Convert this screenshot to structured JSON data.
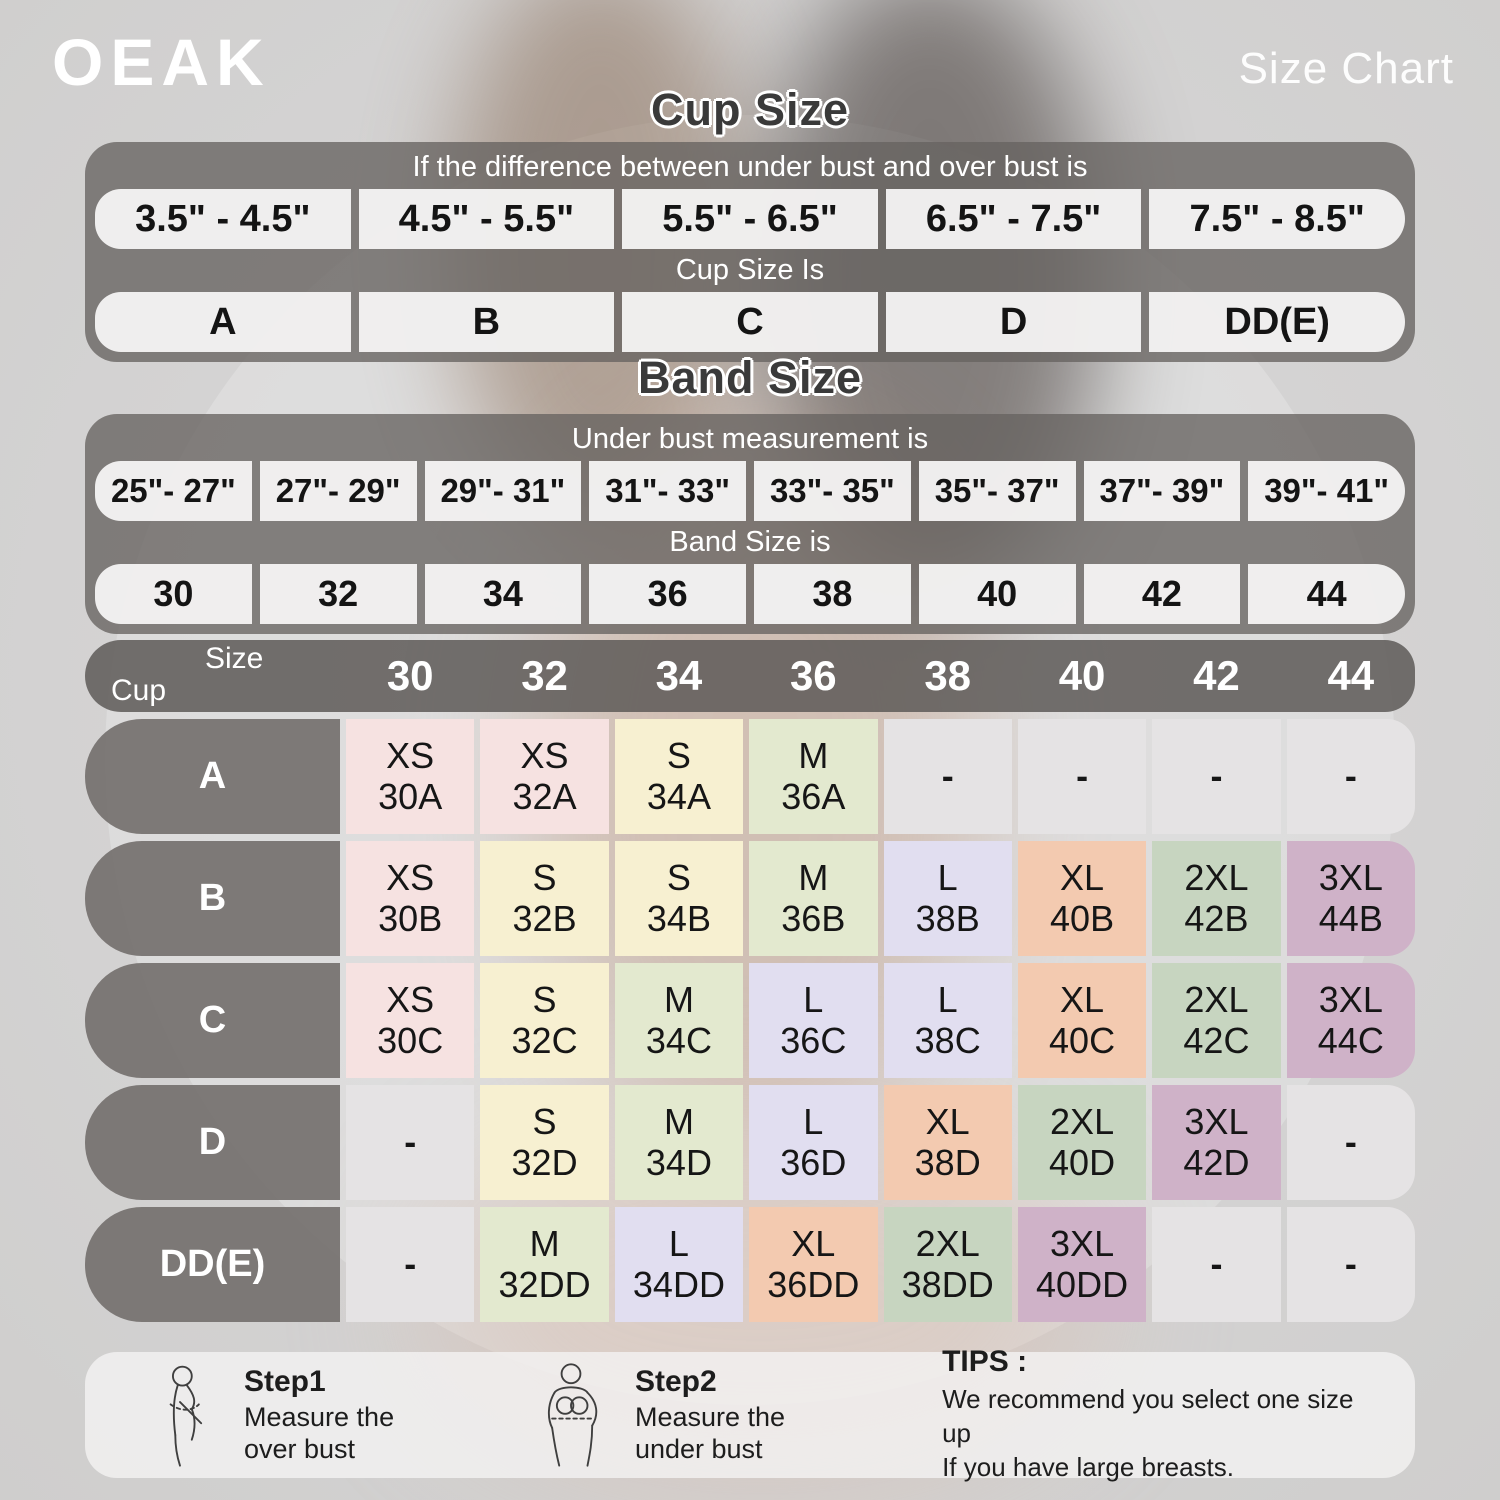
{
  "brand": "OEAK",
  "page_title": "Size Chart",
  "colors": {
    "pink": "#f6e2e1",
    "cream": "#f7f0d1",
    "sage": "#e3e9cf",
    "lavender": "#e1def0",
    "peach": "#f3cab0",
    "green": "#c7d5c0",
    "mauve": "#cfb2c8",
    "gray": "#e5e3e4",
    "panel_gray": "rgba(103,99,96,0.78)",
    "title_gray": "#3a3a3a",
    "text_white": "#ffffff"
  },
  "cup_section": {
    "title": "Cup Size",
    "header": "If the  difference between under bust and over bust is",
    "ranges": [
      "3.5\" -  4.5\"",
      "4.5\" -  5.5\"",
      "5.5\" -  6.5\"",
      "6.5\" -  7.5\"",
      "7.5\" -  8.5\""
    ],
    "subheader": "Cup Size Is",
    "values": [
      "A",
      "B",
      "C",
      "D",
      "DD(E)"
    ]
  },
  "band_section": {
    "title": "Band Size",
    "header": "Under bust measurement is",
    "ranges": [
      "25\"- 27\"",
      "27\"- 29\"",
      "29\"- 31\"",
      "31\"- 33\"",
      "33\"- 35\"",
      "35\"- 37\"",
      "37\"- 39\"",
      "39\"- 41\""
    ],
    "subheader": "Band Size is",
    "values": [
      "30",
      "32",
      "34",
      "36",
      "38",
      "40",
      "42",
      "44"
    ]
  },
  "matrix": {
    "corner_top": "Size",
    "corner_bottom": "Cup",
    "columns": [
      "30",
      "32",
      "34",
      "36",
      "38",
      "40",
      "42",
      "44"
    ],
    "rows": [
      {
        "label": "A",
        "cells": [
          {
            "size": "XS",
            "code": "30A",
            "color": "pink"
          },
          {
            "size": "XS",
            "code": "32A",
            "color": "pink"
          },
          {
            "size": "S",
            "code": "34A",
            "color": "cream"
          },
          {
            "size": "M",
            "code": "36A",
            "color": "sage"
          },
          {
            "size": "-",
            "code": "",
            "color": "gray"
          },
          {
            "size": "-",
            "code": "",
            "color": "gray"
          },
          {
            "size": "-",
            "code": "",
            "color": "gray"
          },
          {
            "size": "-",
            "code": "",
            "color": "gray"
          }
        ]
      },
      {
        "label": "B",
        "cells": [
          {
            "size": "XS",
            "code": "30B",
            "color": "pink"
          },
          {
            "size": "S",
            "code": "32B",
            "color": "cream"
          },
          {
            "size": "S",
            "code": "34B",
            "color": "cream"
          },
          {
            "size": "M",
            "code": "36B",
            "color": "sage"
          },
          {
            "size": "L",
            "code": "38B",
            "color": "lavender"
          },
          {
            "size": "XL",
            "code": "40B",
            "color": "peach"
          },
          {
            "size": "2XL",
            "code": "42B",
            "color": "green"
          },
          {
            "size": "3XL",
            "code": "44B",
            "color": "mauve"
          }
        ]
      },
      {
        "label": "C",
        "cells": [
          {
            "size": "XS",
            "code": "30C",
            "color": "pink"
          },
          {
            "size": "S",
            "code": "32C",
            "color": "cream"
          },
          {
            "size": "M",
            "code": "34C",
            "color": "sage"
          },
          {
            "size": "L",
            "code": "36C",
            "color": "lavender"
          },
          {
            "size": "L",
            "code": "38C",
            "color": "lavender"
          },
          {
            "size": "XL",
            "code": "40C",
            "color": "peach"
          },
          {
            "size": "2XL",
            "code": "42C",
            "color": "green"
          },
          {
            "size": "3XL",
            "code": "44C",
            "color": "mauve"
          }
        ]
      },
      {
        "label": "D",
        "cells": [
          {
            "size": "-",
            "code": "",
            "color": "gray"
          },
          {
            "size": "S",
            "code": "32D",
            "color": "cream"
          },
          {
            "size": "M",
            "code": "34D",
            "color": "sage"
          },
          {
            "size": "L",
            "code": "36D",
            "color": "lavender"
          },
          {
            "size": "XL",
            "code": "38D",
            "color": "peach"
          },
          {
            "size": "2XL",
            "code": "40D",
            "color": "green"
          },
          {
            "size": "3XL",
            "code": "42D",
            "color": "mauve"
          },
          {
            "size": "-",
            "code": "",
            "color": "gray"
          }
        ]
      },
      {
        "label": "DD(E)",
        "cells": [
          {
            "size": "-",
            "code": "",
            "color": "gray"
          },
          {
            "size": "M",
            "code": "32DD",
            "color": "sage"
          },
          {
            "size": "L",
            "code": "34DD",
            "color": "lavender"
          },
          {
            "size": "XL",
            "code": "36DD",
            "color": "peach"
          },
          {
            "size": "2XL",
            "code": "38DD",
            "color": "green"
          },
          {
            "size": "3XL",
            "code": "40DD",
            "color": "mauve"
          },
          {
            "size": "-",
            "code": "",
            "color": "gray"
          },
          {
            "size": "-",
            "code": "",
            "color": "gray"
          }
        ]
      }
    ]
  },
  "footer": {
    "steps": [
      {
        "title": "Step1",
        "line1": "Measure the",
        "line2": "over bust"
      },
      {
        "title": "Step2",
        "line1": "Measure the",
        "line2": "under bust"
      }
    ],
    "tips_title": "TIPS :",
    "tips_line1": "We recommend you select one size up",
    "tips_line2": "If you have large breasts."
  },
  "chart_data": [
    {
      "type": "table",
      "title": "Cup Size",
      "note": "If the  difference between under bust and over bust is",
      "columns": [
        "3.5\" - 4.5\"",
        "4.5\" - 5.5\"",
        "5.5\" - 6.5\"",
        "6.5\" - 7.5\"",
        "7.5\" - 8.5\""
      ],
      "row_label": "Cup Size Is",
      "values": [
        "A",
        "B",
        "C",
        "D",
        "DD(E)"
      ]
    },
    {
      "type": "table",
      "title": "Band Size",
      "note": "Under bust measurement is",
      "columns": [
        "25\"- 27\"",
        "27\"- 29\"",
        "29\"- 31\"",
        "31\"- 33\"",
        "33\"- 35\"",
        "35\"- 37\"",
        "37\"- 39\"",
        "39\"- 41\""
      ],
      "row_label": "Band Size is",
      "values": [
        "30",
        "32",
        "34",
        "36",
        "38",
        "40",
        "42",
        "44"
      ]
    },
    {
      "type": "table",
      "title": "Cup x Band size matrix",
      "columns": [
        "30",
        "32",
        "34",
        "36",
        "38",
        "40",
        "42",
        "44"
      ],
      "rows": [
        {
          "label": "A",
          "values": [
            "XS 30A",
            "XS 32A",
            "S 34A",
            "M 36A",
            "-",
            "-",
            "-",
            "-"
          ]
        },
        {
          "label": "B",
          "values": [
            "XS 30B",
            "S 32B",
            "S 34B",
            "M 36B",
            "L 38B",
            "XL 40B",
            "2XL 42B",
            "3XL 44B"
          ]
        },
        {
          "label": "C",
          "values": [
            "XS 30C",
            "S 32C",
            "M 34C",
            "L 36C",
            "L 38C",
            "XL 40C",
            "2XL 42C",
            "3XL 44C"
          ]
        },
        {
          "label": "D",
          "values": [
            "-",
            "S 32D",
            "M 34D",
            "L 36D",
            "XL 38D",
            "2XL 40D",
            "3XL 42D",
            "-"
          ]
        },
        {
          "label": "DD(E)",
          "values": [
            "-",
            "M 32DD",
            "L 34DD",
            "XL 36DD",
            "2XL 38DD",
            "3XL 40DD",
            "-",
            "-"
          ]
        }
      ]
    }
  ]
}
